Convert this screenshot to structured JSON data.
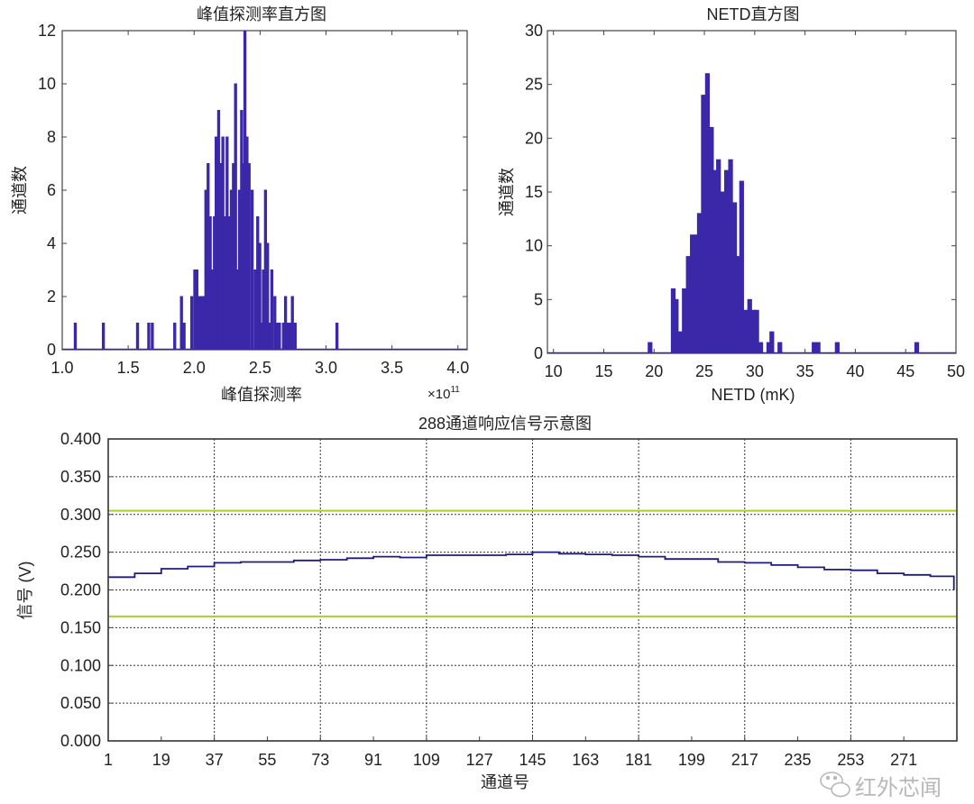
{
  "chart_data": [
    {
      "type": "bar",
      "title": "峰值探测率直方图",
      "xlabel": "峰值探测率",
      "ylabel": "通道数",
      "x_multiplier": "×10",
      "x_multiplier_exp": "11",
      "xlim": [
        1.0,
        4.07
      ],
      "ylim": [
        0,
        12
      ],
      "xticks": [
        "1.0",
        "1.5",
        "2.0",
        "2.5",
        "3.0",
        "3.5",
        "4.0"
      ],
      "yticks": [
        "0",
        "2",
        "4",
        "6",
        "8",
        "10",
        "12"
      ],
      "grid": false,
      "bin_width": 0.016,
      "color": "#3b28a8",
      "bins": [
        [
          1.099,
          1
        ],
        [
          1.312,
          1
        ],
        [
          1.571,
          1
        ],
        [
          1.656,
          1
        ],
        [
          1.683,
          1
        ],
        [
          1.853,
          1
        ],
        [
          1.904,
          2
        ],
        [
          1.924,
          1
        ],
        [
          1.982,
          2
        ],
        [
          2.005,
          3
        ],
        [
          2.021,
          3
        ],
        [
          2.039,
          2
        ],
        [
          2.055,
          2
        ],
        [
          2.071,
          2
        ],
        [
          2.089,
          6
        ],
        [
          2.106,
          7
        ],
        [
          2.122,
          5
        ],
        [
          2.138,
          3
        ],
        [
          2.154,
          5
        ],
        [
          2.167,
          8
        ],
        [
          2.186,
          9
        ],
        [
          2.202,
          7
        ],
        [
          2.218,
          8
        ],
        [
          2.234,
          5
        ],
        [
          2.25,
          8
        ],
        [
          2.266,
          5
        ],
        [
          2.282,
          6
        ],
        [
          2.298,
          7
        ],
        [
          2.314,
          10
        ],
        [
          2.328,
          3
        ],
        [
          2.344,
          6
        ],
        [
          2.36,
          9
        ],
        [
          2.374,
          7
        ],
        [
          2.385,
          12
        ],
        [
          2.401,
          8
        ],
        [
          2.417,
          7
        ],
        [
          2.44,
          6
        ],
        [
          2.463,
          3
        ],
        [
          2.482,
          5
        ],
        [
          2.498,
          4
        ],
        [
          2.511,
          1
        ],
        [
          2.525,
          3
        ],
        [
          2.541,
          6
        ],
        [
          2.557,
          4
        ],
        [
          2.571,
          1
        ],
        [
          2.589,
          3
        ],
        [
          2.612,
          2
        ],
        [
          2.631,
          1
        ],
        [
          2.647,
          1
        ],
        [
          2.677,
          1
        ],
        [
          2.693,
          2
        ],
        [
          2.709,
          1
        ],
        [
          2.727,
          1
        ],
        [
          2.745,
          2
        ],
        [
          2.766,
          1
        ],
        [
          3.083,
          1
        ]
      ]
    },
    {
      "type": "bar",
      "title": "NETD直方图",
      "xlabel": "NETD (mK)",
      "ylabel": "通道数",
      "xlim": [
        9.4,
        50
      ],
      "ylim": [
        0,
        30
      ],
      "xticks": [
        "10",
        "15",
        "20",
        "25",
        "30",
        "35",
        "40",
        "45",
        "50"
      ],
      "yticks": [
        "0",
        "5",
        "10",
        "15",
        "20",
        "25",
        "30"
      ],
      "grid": false,
      "bin_width": 0.38,
      "color": "#3b28a8",
      "bins": [
        [
          19.6,
          1
        ],
        [
          21.9,
          6
        ],
        [
          22.2,
          5
        ],
        [
          22.6,
          2
        ],
        [
          23.0,
          6
        ],
        [
          23.4,
          9
        ],
        [
          23.8,
          11
        ],
        [
          24.2,
          11
        ],
        [
          24.5,
          13
        ],
        [
          24.9,
          24
        ],
        [
          25.3,
          26
        ],
        [
          25.7,
          21
        ],
        [
          26.1,
          17
        ],
        [
          26.4,
          18
        ],
        [
          26.8,
          15
        ],
        [
          27.2,
          17
        ],
        [
          27.6,
          18
        ],
        [
          28.0,
          14
        ],
        [
          28.3,
          9
        ],
        [
          28.7,
          16
        ],
        [
          29.1,
          4
        ],
        [
          29.5,
          5
        ],
        [
          29.9,
          4
        ],
        [
          30.2,
          4
        ],
        [
          30.6,
          1
        ],
        [
          31.4,
          1
        ],
        [
          31.7,
          2
        ],
        [
          32.5,
          1
        ],
        [
          35.9,
          1
        ],
        [
          36.3,
          1
        ],
        [
          38.2,
          1
        ],
        [
          46.1,
          1
        ]
      ]
    },
    {
      "type": "line",
      "title": "288通道响应信号示意图",
      "xlabel": "通道号",
      "ylabel": "信号 (V)",
      "xlim": [
        1,
        289
      ],
      "ylim": [
        0,
        0.4
      ],
      "xticks": [
        "1",
        "19",
        "37",
        "55",
        "73",
        "91",
        "109",
        "127",
        "145",
        "163",
        "181",
        "199",
        "217",
        "235",
        "253",
        "271"
      ],
      "yticks": [
        "0.000",
        "0.050",
        "0.100",
        "0.150",
        "0.200",
        "0.250",
        "0.300",
        "0.350",
        "0.400"
      ],
      "grid": true,
      "x_grid": [
        37,
        73,
        109,
        145,
        181,
        217,
        253
      ],
      "line_color": "#1c1c80",
      "threshold_color": "#a4d22a",
      "thresholds": [
        0.305,
        0.165
      ],
      "x": [
        1,
        10,
        19,
        28,
        37,
        46,
        55,
        64,
        73,
        82,
        91,
        100,
        109,
        118,
        127,
        136,
        145,
        154,
        163,
        172,
        181,
        190,
        199,
        208,
        217,
        226,
        235,
        244,
        253,
        262,
        271,
        280,
        288
      ],
      "y": [
        0.217,
        0.222,
        0.228,
        0.231,
        0.236,
        0.237,
        0.237,
        0.239,
        0.24,
        0.242,
        0.244,
        0.243,
        0.246,
        0.246,
        0.246,
        0.247,
        0.25,
        0.248,
        0.247,
        0.246,
        0.244,
        0.241,
        0.241,
        0.237,
        0.236,
        0.233,
        0.23,
        0.227,
        0.226,
        0.222,
        0.22,
        0.218,
        0.2
      ]
    }
  ],
  "watermark": {
    "text": "红外芯闻",
    "icon": "wechat-icon"
  }
}
